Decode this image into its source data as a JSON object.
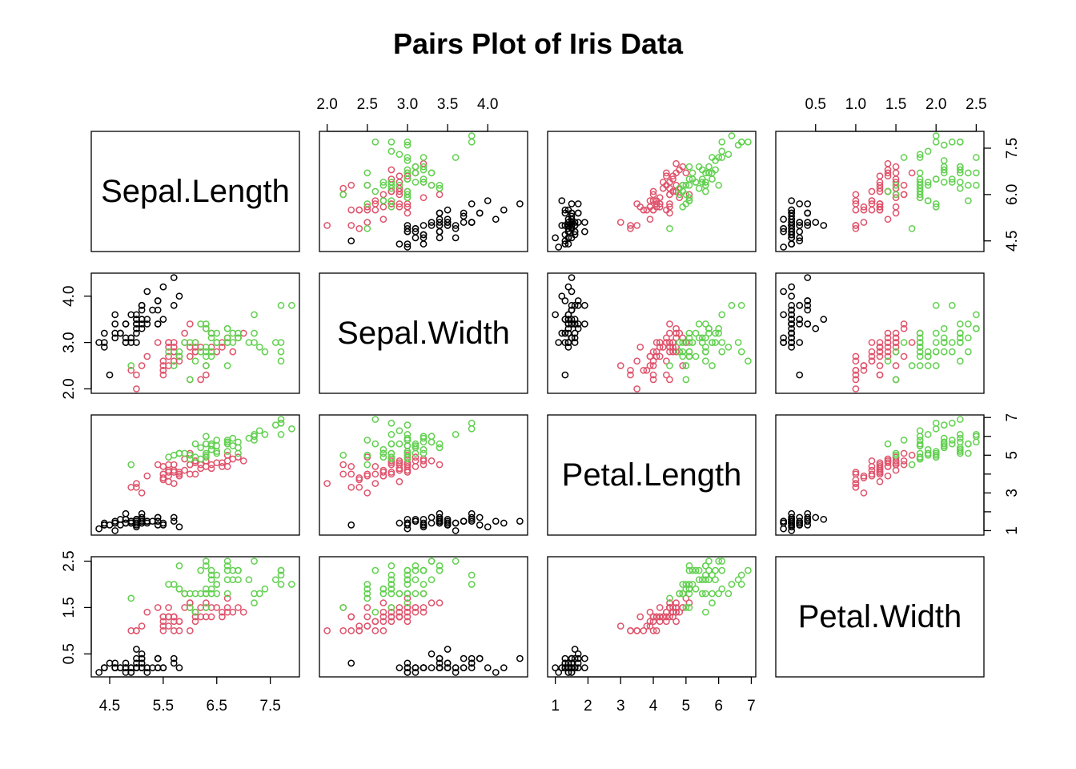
{
  "chart_data": {
    "type": "scatter",
    "subtype": "pairs",
    "title": "Pairs Plot of Iris Data",
    "variables": [
      "Sepal.Length",
      "Sepal.Width",
      "Petal.Length",
      "Petal.Width"
    ],
    "ranges": [
      [
        4.3,
        7.9
      ],
      [
        2.0,
        4.4
      ],
      [
        1.0,
        6.9
      ],
      [
        0.1,
        2.5
      ]
    ],
    "ticks": [
      [
        "4.5",
        "5.5",
        "6.5",
        "7.5",
        "4.5",
        "6.0",
        "7.5"
      ],
      [
        "2.0",
        "2.5",
        "3.0",
        "3.5",
        "4.0",
        "2.0",
        "3.0",
        "4.0"
      ],
      [
        "1",
        "2",
        "3",
        "4",
        "5",
        "6",
        "7",
        "1",
        "3",
        "5",
        "7"
      ],
      [
        "0.5",
        "1.0",
        "1.5",
        "2.0",
        "2.5",
        "0.5",
        "1.5",
        "2.5"
      ]
    ],
    "series": [
      {
        "color": "#000000",
        "points": [
          [
            5.1,
            3.5,
            1.4,
            0.2
          ],
          [
            4.9,
            3.0,
            1.4,
            0.2
          ],
          [
            4.7,
            3.2,
            1.3,
            0.2
          ],
          [
            4.6,
            3.1,
            1.5,
            0.2
          ],
          [
            5.0,
            3.6,
            1.4,
            0.2
          ],
          [
            5.4,
            3.9,
            1.7,
            0.4
          ],
          [
            4.6,
            3.4,
            1.4,
            0.3
          ],
          [
            5.0,
            3.4,
            1.5,
            0.2
          ],
          [
            4.4,
            2.9,
            1.4,
            0.2
          ],
          [
            4.9,
            3.1,
            1.5,
            0.1
          ],
          [
            5.4,
            3.7,
            1.5,
            0.2
          ],
          [
            4.8,
            3.4,
            1.6,
            0.2
          ],
          [
            4.8,
            3.0,
            1.4,
            0.1
          ],
          [
            4.3,
            3.0,
            1.1,
            0.1
          ],
          [
            5.8,
            4.0,
            1.2,
            0.2
          ],
          [
            5.7,
            4.4,
            1.5,
            0.4
          ],
          [
            5.4,
            3.9,
            1.3,
            0.4
          ],
          [
            5.1,
            3.5,
            1.4,
            0.3
          ],
          [
            5.7,
            3.8,
            1.7,
            0.3
          ],
          [
            5.1,
            3.8,
            1.5,
            0.3
          ],
          [
            5.4,
            3.4,
            1.7,
            0.2
          ],
          [
            5.1,
            3.7,
            1.5,
            0.4
          ],
          [
            4.6,
            3.6,
            1.0,
            0.2
          ],
          [
            5.1,
            3.3,
            1.7,
            0.5
          ],
          [
            4.8,
            3.4,
            1.9,
            0.2
          ],
          [
            5.0,
            3.0,
            1.6,
            0.2
          ],
          [
            5.0,
            3.4,
            1.6,
            0.4
          ],
          [
            5.2,
            3.5,
            1.5,
            0.2
          ],
          [
            5.2,
            3.4,
            1.4,
            0.2
          ],
          [
            4.7,
            3.2,
            1.6,
            0.2
          ],
          [
            4.8,
            3.1,
            1.6,
            0.2
          ],
          [
            5.4,
            3.4,
            1.5,
            0.4
          ],
          [
            5.2,
            4.1,
            1.5,
            0.1
          ],
          [
            5.5,
            4.2,
            1.4,
            0.2
          ],
          [
            4.9,
            3.1,
            1.5,
            0.2
          ],
          [
            5.0,
            3.2,
            1.2,
            0.2
          ],
          [
            5.5,
            3.5,
            1.3,
            0.2
          ],
          [
            4.9,
            3.6,
            1.4,
            0.1
          ],
          [
            4.4,
            3.0,
            1.3,
            0.2
          ],
          [
            5.1,
            3.4,
            1.5,
            0.2
          ],
          [
            5.0,
            3.5,
            1.3,
            0.3
          ],
          [
            4.5,
            2.3,
            1.3,
            0.3
          ],
          [
            4.4,
            3.2,
            1.3,
            0.2
          ],
          [
            5.0,
            3.5,
            1.6,
            0.6
          ],
          [
            5.1,
            3.8,
            1.9,
            0.4
          ],
          [
            4.8,
            3.0,
            1.4,
            0.3
          ],
          [
            5.1,
            3.8,
            1.6,
            0.2
          ],
          [
            4.6,
            3.2,
            1.4,
            0.2
          ],
          [
            5.3,
            3.7,
            1.5,
            0.2
          ],
          [
            5.0,
            3.3,
            1.4,
            0.2
          ]
        ]
      },
      {
        "color": "#DF536B",
        "points": [
          [
            7.0,
            3.2,
            4.7,
            1.4
          ],
          [
            6.4,
            3.2,
            4.5,
            1.5
          ],
          [
            6.9,
            3.1,
            4.9,
            1.5
          ],
          [
            5.5,
            2.3,
            4.0,
            1.3
          ],
          [
            6.5,
            2.8,
            4.6,
            1.5
          ],
          [
            5.7,
            2.8,
            4.5,
            1.3
          ],
          [
            6.3,
            3.3,
            4.7,
            1.6
          ],
          [
            4.9,
            2.4,
            3.3,
            1.0
          ],
          [
            6.6,
            2.9,
            4.6,
            1.3
          ],
          [
            5.2,
            2.7,
            3.9,
            1.4
          ],
          [
            5.0,
            2.0,
            3.5,
            1.0
          ],
          [
            5.9,
            3.0,
            4.2,
            1.5
          ],
          [
            6.0,
            2.2,
            4.0,
            1.0
          ],
          [
            6.1,
            2.9,
            4.7,
            1.4
          ],
          [
            5.6,
            2.9,
            3.6,
            1.3
          ],
          [
            6.7,
            3.1,
            4.4,
            1.4
          ],
          [
            5.6,
            3.0,
            4.5,
            1.5
          ],
          [
            5.8,
            2.7,
            4.1,
            1.0
          ],
          [
            6.2,
            2.2,
            4.5,
            1.5
          ],
          [
            5.6,
            2.5,
            3.9,
            1.1
          ],
          [
            5.9,
            3.2,
            4.8,
            1.8
          ],
          [
            6.1,
            2.8,
            4.0,
            1.3
          ],
          [
            6.3,
            2.5,
            4.9,
            1.5
          ],
          [
            6.1,
            2.8,
            4.7,
            1.2
          ],
          [
            6.4,
            2.9,
            4.3,
            1.3
          ],
          [
            6.6,
            3.0,
            4.4,
            1.4
          ],
          [
            6.8,
            2.8,
            4.8,
            1.4
          ],
          [
            6.7,
            3.0,
            5.0,
            1.7
          ],
          [
            6.0,
            2.9,
            4.5,
            1.5
          ],
          [
            5.7,
            2.6,
            3.5,
            1.0
          ],
          [
            5.5,
            2.4,
            3.8,
            1.1
          ],
          [
            5.5,
            2.4,
            3.7,
            1.0
          ],
          [
            5.8,
            2.7,
            3.9,
            1.2
          ],
          [
            6.0,
            2.7,
            5.1,
            1.6
          ],
          [
            5.4,
            3.0,
            4.5,
            1.5
          ],
          [
            6.0,
            3.4,
            4.5,
            1.6
          ],
          [
            6.7,
            3.1,
            4.7,
            1.5
          ],
          [
            6.3,
            2.3,
            4.4,
            1.3
          ],
          [
            5.6,
            3.0,
            4.1,
            1.3
          ],
          [
            5.5,
            2.5,
            4.0,
            1.3
          ],
          [
            5.5,
            2.6,
            4.4,
            1.2
          ],
          [
            6.1,
            3.0,
            4.6,
            1.4
          ],
          [
            5.8,
            2.6,
            4.0,
            1.2
          ],
          [
            5.0,
            2.3,
            3.3,
            1.0
          ],
          [
            5.6,
            2.7,
            4.2,
            1.3
          ],
          [
            5.7,
            3.0,
            4.2,
            1.2
          ],
          [
            5.7,
            2.9,
            4.2,
            1.3
          ],
          [
            6.2,
            2.9,
            4.3,
            1.3
          ],
          [
            5.1,
            2.5,
            3.0,
            1.1
          ],
          [
            5.7,
            2.8,
            4.1,
            1.3
          ]
        ]
      },
      {
        "color": "#61D04F",
        "points": [
          [
            6.3,
            3.3,
            6.0,
            2.5
          ],
          [
            5.8,
            2.7,
            5.1,
            1.9
          ],
          [
            7.1,
            3.0,
            5.9,
            2.1
          ],
          [
            6.3,
            2.9,
            5.6,
            1.8
          ],
          [
            6.5,
            3.0,
            5.8,
            2.2
          ],
          [
            7.6,
            3.0,
            6.6,
            2.1
          ],
          [
            4.9,
            2.5,
            4.5,
            1.7
          ],
          [
            7.3,
            2.9,
            6.3,
            1.8
          ],
          [
            6.7,
            2.5,
            5.8,
            1.8
          ],
          [
            7.2,
            3.6,
            6.1,
            2.5
          ],
          [
            6.5,
            3.2,
            5.1,
            2.0
          ],
          [
            6.4,
            2.7,
            5.3,
            1.9
          ],
          [
            6.8,
            3.0,
            5.5,
            2.1
          ],
          [
            5.7,
            2.5,
            5.0,
            2.0
          ],
          [
            5.8,
            2.8,
            5.1,
            2.4
          ],
          [
            6.4,
            3.2,
            5.3,
            2.3
          ],
          [
            6.5,
            3.0,
            5.5,
            1.8
          ],
          [
            7.7,
            3.8,
            6.7,
            2.2
          ],
          [
            7.7,
            2.6,
            6.9,
            2.3
          ],
          [
            6.0,
            2.2,
            5.0,
            1.5
          ],
          [
            6.9,
            3.2,
            5.7,
            2.3
          ],
          [
            5.6,
            2.8,
            4.9,
            2.0
          ],
          [
            7.7,
            2.8,
            6.7,
            2.0
          ],
          [
            6.3,
            2.7,
            4.9,
            1.8
          ],
          [
            6.7,
            3.3,
            5.7,
            2.1
          ],
          [
            7.2,
            3.2,
            6.0,
            1.8
          ],
          [
            6.2,
            2.8,
            4.8,
            1.8
          ],
          [
            6.1,
            3.0,
            4.9,
            1.8
          ],
          [
            6.4,
            2.8,
            5.6,
            2.1
          ],
          [
            7.2,
            3.0,
            5.8,
            1.6
          ],
          [
            7.4,
            2.8,
            6.1,
            1.9
          ],
          [
            7.9,
            3.8,
            6.4,
            2.0
          ],
          [
            6.4,
            2.8,
            5.6,
            2.2
          ],
          [
            6.3,
            2.8,
            5.1,
            1.5
          ],
          [
            6.1,
            2.6,
            5.6,
            1.4
          ],
          [
            7.7,
            3.0,
            6.1,
            2.3
          ],
          [
            6.3,
            3.4,
            5.6,
            2.4
          ],
          [
            6.4,
            3.1,
            5.5,
            1.8
          ],
          [
            6.0,
            3.0,
            4.8,
            1.8
          ],
          [
            6.9,
            3.1,
            5.4,
            2.1
          ],
          [
            6.7,
            3.1,
            5.6,
            2.4
          ],
          [
            6.9,
            3.1,
            5.1,
            2.3
          ],
          [
            5.8,
            2.7,
            5.1,
            1.9
          ],
          [
            6.8,
            3.2,
            5.9,
            2.3
          ],
          [
            6.7,
            3.3,
            5.7,
            2.5
          ],
          [
            6.7,
            3.0,
            5.2,
            2.3
          ],
          [
            6.3,
            2.5,
            5.0,
            1.9
          ],
          [
            6.5,
            3.0,
            5.2,
            2.0
          ],
          [
            6.2,
            3.4,
            5.4,
            2.3
          ],
          [
            5.9,
            3.0,
            5.1,
            1.8
          ]
        ]
      }
    ]
  }
}
